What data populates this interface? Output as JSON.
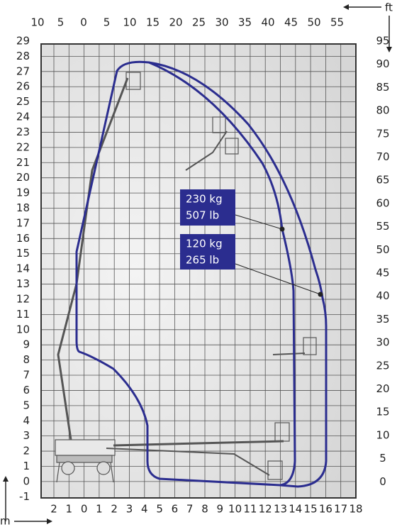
{
  "axes": {
    "top_unit": "ft",
    "left_unit": "m",
    "top_ft": [
      10,
      5,
      0,
      5,
      10,
      15,
      20,
      25,
      30,
      35,
      40,
      45,
      50,
      55
    ],
    "right_ft": [
      95,
      90,
      85,
      80,
      75,
      70,
      65,
      60,
      55,
      50,
      45,
      40,
      35,
      30,
      25,
      20,
      15,
      10,
      5,
      0
    ],
    "left_m": [
      29,
      28,
      27,
      26,
      25,
      24,
      23,
      22,
      21,
      20,
      19,
      18,
      17,
      16,
      15,
      14,
      13,
      12,
      11,
      10,
      9,
      8,
      7,
      6,
      5,
      4,
      3,
      2,
      1,
      0,
      -1
    ],
    "bottom_m": [
      2,
      1,
      0,
      1,
      2,
      3,
      4,
      5,
      6,
      7,
      8,
      9,
      10,
      11,
      12,
      13,
      14,
      15,
      16,
      17,
      18
    ]
  },
  "loads": [
    {
      "kg": "230 kg",
      "lb": "507 lb"
    },
    {
      "kg": "120 kg",
      "lb": "265 lb"
    }
  ]
}
